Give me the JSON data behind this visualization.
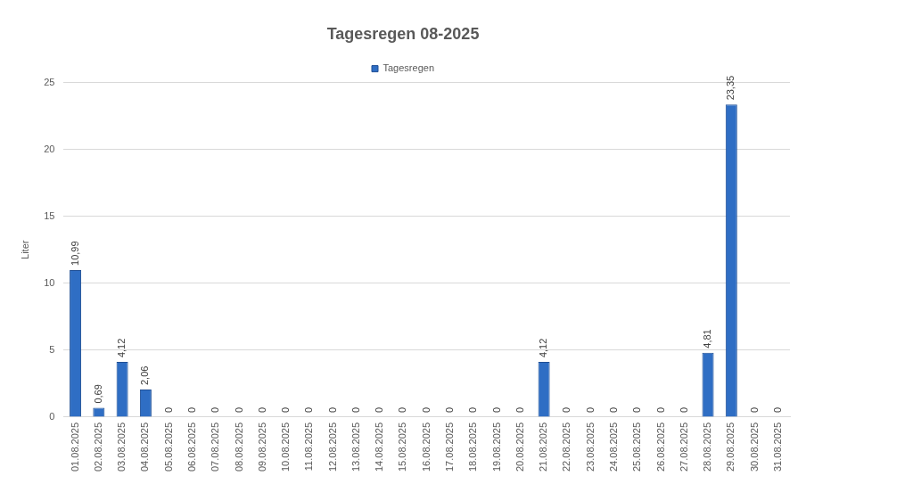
{
  "chart_data": {
    "type": "bar",
    "title": "Tagesregen 08-2025",
    "ylabel": "Liter",
    "categories": [
      "01.08.2025",
      "02.08.2025",
      "03.08.2025",
      "04.08.2025",
      "05.08.2025",
      "06.08.2025",
      "07.08.2025",
      "08.08.2025",
      "09.08.2025",
      "10.08.2025",
      "11.08.2025",
      "12.08.2025",
      "13.08.2025",
      "14.08.2025",
      "15.08.2025",
      "16.08.2025",
      "17.08.2025",
      "18.08.2025",
      "19.08.2025",
      "20.08.2025",
      "21.08.2025",
      "22.08.2025",
      "23.08.2025",
      "24.08.2025",
      "25.08.2025",
      "26.08.2025",
      "27.08.2025",
      "28.08.2025",
      "29.08.2025",
      "30.08.2025",
      "31.08.2025"
    ],
    "series": [
      {
        "name": "Tagesregen",
        "color": "#2f6ec4",
        "values": [
          10.99,
          0.69,
          4.12,
          2.06,
          0,
          0,
          0,
          0,
          0,
          0,
          0,
          0,
          0,
          0,
          0,
          0,
          0,
          0,
          0,
          0,
          4.12,
          0,
          0,
          0,
          0,
          0,
          0,
          4.81,
          23.35,
          0,
          0
        ],
        "value_labels": [
          "10,99",
          "0,69",
          "4,12",
          "2,06",
          "0",
          "0",
          "0",
          "0",
          "0",
          "0",
          "0",
          "0",
          "0",
          "0",
          "0",
          "0",
          "0",
          "0",
          "0",
          "0",
          "4,12",
          "0",
          "0",
          "0",
          "0",
          "0",
          "0",
          "4,81",
          "23,35",
          "0",
          "0"
        ]
      }
    ],
    "ylim": [
      0,
      25
    ],
    "yticks": [
      0,
      5,
      10,
      15,
      20,
      25
    ],
    "grid": "y",
    "legend": "top"
  }
}
